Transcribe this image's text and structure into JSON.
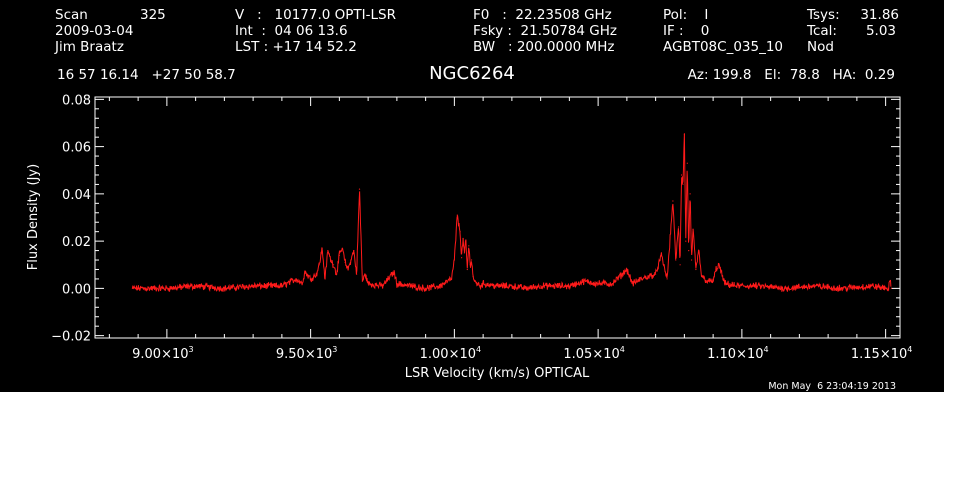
{
  "header": {
    "scan_label": "Scan",
    "scan_number": "325",
    "date": "2009-03-04",
    "observer": "Jim Braatz",
    "velocity_line": "V   :   10177.0 OPTI-LSR",
    "int_line": "Int  :  04 06 13.6",
    "lst_line": "LST : +17 14 52.2",
    "f0_line": "F0   :  22.23508 GHz",
    "fsky_line": "Fsky :  21.50784 GHz",
    "bw_line": "BW   : 200.0000 MHz",
    "pol_line": "Pol:    I",
    "if_line": "IF :    0",
    "project": "AGBT08C_035_10",
    "tsys_label": "Tsys:",
    "tsys_value": "31.86",
    "tcal_label": "Tcal:",
    "tcal_value": "5.03",
    "proc": "Nod",
    "coordinates": "16 57 16.14   +27 50 58.7",
    "source": "NGC6264",
    "az_el_ha": "Az: 199.8   El:  78.8   HA:  0.29"
  },
  "timestamp": "Mon May  6 23:04:19 2013",
  "colors": {
    "background": "#000000",
    "axes": "#ffffff",
    "trace": "#ff1a1a"
  },
  "chart_data": {
    "type": "line",
    "title": "NGC6264",
    "xlabel": "LSR Velocity (km/s) OPTICAL",
    "ylabel": "Flux Density (Jy)",
    "xlim": [
      8750,
      11550
    ],
    "ylim": [
      -0.021,
      0.081
    ],
    "x_ticks": [
      {
        "value": 9000,
        "mantissa": "9.00×10",
        "exponent": "3"
      },
      {
        "value": 9500,
        "mantissa": "9.50×10",
        "exponent": "3"
      },
      {
        "value": 10000,
        "mantissa": "1.00×10",
        "exponent": "4"
      },
      {
        "value": 10500,
        "mantissa": "1.05×10",
        "exponent": "4"
      },
      {
        "value": 11000,
        "mantissa": "1.10×10",
        "exponent": "4"
      },
      {
        "value": 11500,
        "mantissa": "1.15×10",
        "exponent": "4"
      }
    ],
    "y_ticks": [
      {
        "value": -0.02,
        "label": "−0.02"
      },
      {
        "value": 0.0,
        "label": "0.00"
      },
      {
        "value": 0.02,
        "label": "0.02"
      },
      {
        "value": 0.04,
        "label": "0.04"
      },
      {
        "value": 0.06,
        "label": "0.06"
      },
      {
        "value": 0.08,
        "label": "0.08"
      }
    ],
    "grid": false,
    "series": [
      {
        "x": [
          8880,
          9000,
          9100,
          9200,
          9300,
          9400,
          9450,
          9470,
          9480,
          9500,
          9520,
          9530,
          9540,
          9550,
          9560,
          9570,
          9580,
          9590,
          9600,
          9610,
          9620,
          9630,
          9640,
          9650,
          9660,
          9670,
          9680,
          9690,
          9700,
          9750,
          9790,
          9800,
          9850,
          9900,
          9950,
          9990,
          10000,
          10010,
          10015,
          10020,
          10025,
          10030,
          10035,
          10040,
          10045,
          10050,
          10055,
          10060,
          10065,
          10070,
          10080,
          10090,
          10100,
          10150,
          10200,
          10250,
          10300,
          10350,
          10400,
          10450,
          10500,
          10550,
          10600,
          10620,
          10650,
          10700,
          10720,
          10740,
          10760,
          10770,
          10780,
          10785,
          10790,
          10795,
          10800,
          10805,
          10810,
          10815,
          10820,
          10825,
          10830,
          10840,
          10850,
          10860,
          10880,
          10900,
          10910,
          10920,
          10940,
          10980,
          11050,
          11150,
          11250,
          11350,
          11450,
          11510,
          11515,
          11520
        ],
        "y": [
          0.0,
          0.0,
          0.001,
          0.0,
          0.001,
          0.001,
          0.004,
          0.002,
          0.007,
          0.004,
          0.006,
          0.01,
          0.017,
          0.004,
          0.016,
          0.012,
          0.01,
          0.006,
          0.014,
          0.017,
          0.011,
          0.008,
          0.012,
          0.016,
          0.006,
          0.042,
          0.003,
          0.006,
          0.002,
          0.001,
          0.007,
          0.002,
          0.001,
          0.0,
          0.001,
          0.004,
          0.012,
          0.031,
          0.027,
          0.024,
          0.013,
          0.021,
          0.015,
          0.02,
          0.008,
          0.018,
          0.01,
          0.012,
          0.005,
          0.003,
          0.002,
          0.001,
          0.002,
          0.001,
          0.001,
          0.0,
          0.001,
          0.001,
          0.001,
          0.003,
          0.002,
          0.002,
          0.008,
          0.002,
          0.004,
          0.006,
          0.014,
          0.004,
          0.037,
          0.012,
          0.026,
          0.01,
          0.048,
          0.044,
          0.065,
          0.02,
          0.053,
          0.016,
          0.04,
          0.012,
          0.025,
          0.008,
          0.016,
          0.005,
          0.003,
          0.003,
          0.008,
          0.01,
          0.002,
          0.001,
          0.001,
          0.0,
          0.001,
          0.0,
          0.001,
          0.0,
          0.003,
          0.0
        ]
      }
    ]
  }
}
